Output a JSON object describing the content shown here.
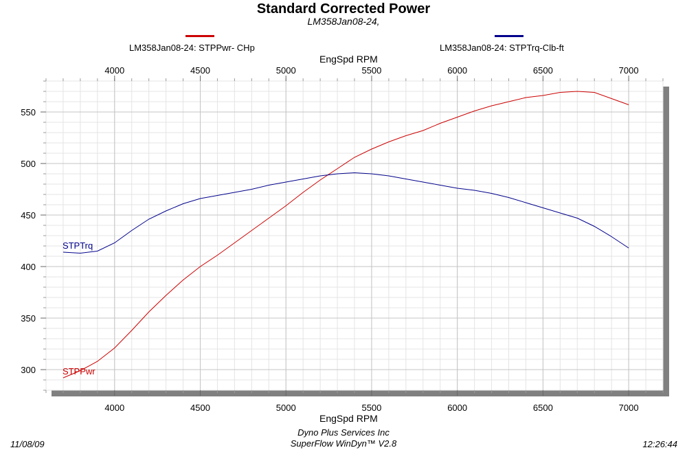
{
  "chart_data": {
    "type": "line",
    "title": "Standard Corrected Power",
    "subtitle": "LM358Jan08-24,",
    "xlabel": "EngSpd  RPM",
    "xlim": [
      3600,
      7200
    ],
    "x_ticks": [
      4000,
      4500,
      5000,
      5500,
      6000,
      6500,
      7000
    ],
    "ylim": [
      280,
      580
    ],
    "y_ticks": [
      300,
      350,
      400,
      450,
      500,
      550
    ],
    "x_minor_step": 100,
    "y_minor_step": 10,
    "grid": true,
    "legend_placement": "top",
    "series": [
      {
        "name": "LM358Jan08-24: STPPwr- CHp",
        "label": "STPPwr",
        "color": "#cc0000",
        "points": [
          [
            3700,
            292
          ],
          [
            3800,
            299
          ],
          [
            3900,
            308
          ],
          [
            4000,
            321
          ],
          [
            4100,
            338
          ],
          [
            4200,
            356
          ],
          [
            4300,
            372
          ],
          [
            4400,
            387
          ],
          [
            4500,
            400
          ],
          [
            4600,
            411
          ],
          [
            4700,
            423
          ],
          [
            4800,
            435
          ],
          [
            4900,
            447
          ],
          [
            5000,
            459
          ],
          [
            5100,
            472
          ],
          [
            5200,
            484
          ],
          [
            5300,
            495
          ],
          [
            5400,
            506
          ],
          [
            5500,
            514
          ],
          [
            5600,
            521
          ],
          [
            5700,
            527
          ],
          [
            5800,
            532
          ],
          [
            5900,
            539
          ],
          [
            6000,
            545
          ],
          [
            6100,
            551
          ],
          [
            6200,
            556
          ],
          [
            6300,
            560
          ],
          [
            6400,
            564
          ],
          [
            6500,
            566
          ],
          [
            6600,
            569
          ],
          [
            6700,
            570
          ],
          [
            6800,
            569
          ],
          [
            6900,
            563
          ],
          [
            7000,
            557
          ]
        ]
      },
      {
        "name": "LM358Jan08-24: STPTrq-Clb-ft",
        "label": "STPTrq",
        "color": "#00008b",
        "points": [
          [
            3700,
            414
          ],
          [
            3800,
            413
          ],
          [
            3900,
            415
          ],
          [
            4000,
            423
          ],
          [
            4100,
            435
          ],
          [
            4200,
            446
          ],
          [
            4300,
            454
          ],
          [
            4400,
            461
          ],
          [
            4500,
            466
          ],
          [
            4600,
            469
          ],
          [
            4700,
            472
          ],
          [
            4800,
            475
          ],
          [
            4900,
            479
          ],
          [
            5000,
            482
          ],
          [
            5100,
            485
          ],
          [
            5200,
            488
          ],
          [
            5300,
            490
          ],
          [
            5400,
            491
          ],
          [
            5500,
            490
          ],
          [
            5600,
            488
          ],
          [
            5700,
            485
          ],
          [
            5800,
            482
          ],
          [
            5900,
            479
          ],
          [
            6000,
            476
          ],
          [
            6100,
            474
          ],
          [
            6200,
            471
          ],
          [
            6300,
            467
          ],
          [
            6400,
            462
          ],
          [
            6500,
            457
          ],
          [
            6600,
            452
          ],
          [
            6700,
            447
          ],
          [
            6800,
            439
          ],
          [
            6900,
            429
          ],
          [
            7000,
            418
          ]
        ]
      }
    ]
  },
  "legend": {
    "power_label": "LM358Jan08-24: STPPwr- CHp",
    "torque_label": "LM358Jan08-24: STPTrq-Clb-ft",
    "power_color": "#cc0000",
    "torque_color": "#00008b"
  },
  "footer": {
    "date": "11/08/09",
    "company": "Dyno Plus Services Inc",
    "software": "SuperFlow WinDyn™ V2.8",
    "time": "12:26:44"
  }
}
